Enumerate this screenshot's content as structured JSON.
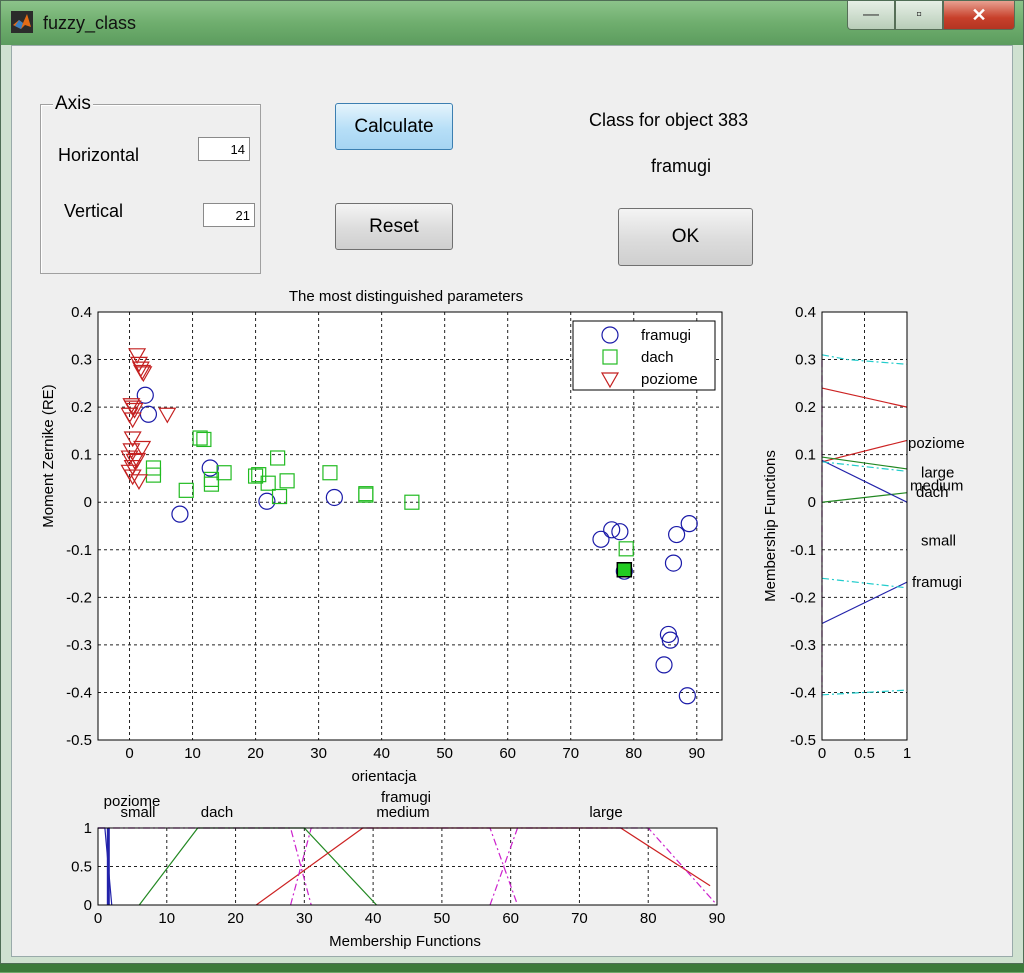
{
  "window": {
    "title": "fuzzy_class",
    "minimize_symbol": "—",
    "restore_symbol": "▫",
    "close_symbol": "✕"
  },
  "axis_panel": {
    "legend": "Axis",
    "horizontal_label": "Horizontal",
    "horizontal_value": "14",
    "vertical_label": "Vertical",
    "vertical_value": "21"
  },
  "buttons": {
    "calculate": "Calculate",
    "reset": "Reset",
    "ok": "OK"
  },
  "result": {
    "class_label": "Class for object  383",
    "class_value": "framugi"
  },
  "colors": {
    "framugi": "#1a1aa8",
    "dach": "#22bb22",
    "poziome": "#c42020",
    "selected": "#22cc22",
    "mf_red": "#cc2222",
    "mf_green": "#228822",
    "mf_magenta": "#cc22cc",
    "mf_cyan": "#22cccc",
    "mf_blue": "#2222aa"
  },
  "chart_data": [
    {
      "type": "scatter",
      "title": "The most distinguished parameters",
      "xlabel": "orientacja",
      "ylabel": "Moment Zernike (RE)",
      "xlim": [
        -5,
        94
      ],
      "ylim": [
        -0.5,
        0.4
      ],
      "xticks": [
        0,
        10,
        20,
        30,
        40,
        50,
        60,
        70,
        80,
        90
      ],
      "yticks": [
        0.4,
        0.3,
        0.2,
        0.1,
        0,
        -0.1,
        -0.2,
        -0.3,
        -0.4,
        -0.5
      ],
      "ytick_labels": [
        "0.4",
        "0.3",
        "0.2",
        "0.1",
        "0",
        "-0.1",
        "-0.2",
        "-0.3",
        "-0.4",
        "-0.5"
      ],
      "grid": true,
      "legend_position": "top-right",
      "series": [
        {
          "name": "framugi",
          "marker": "circle",
          "points": [
            [
              2.5,
              0.225
            ],
            [
              3,
              0.185
            ],
            [
              8,
              -0.025
            ],
            [
              12.8,
              0.072
            ],
            [
              21.8,
              0.002
            ],
            [
              32.5,
              0.01
            ],
            [
              74.8,
              -0.078
            ],
            [
              76.5,
              -0.058
            ],
            [
              77.8,
              -0.062
            ],
            [
              78.5,
              -0.145
            ],
            [
              85.5,
              -0.278
            ],
            [
              85.8,
              -0.29
            ],
            [
              84.8,
              -0.342
            ],
            [
              86.3,
              -0.128
            ],
            [
              86.8,
              -0.068
            ],
            [
              88.8,
              -0.045
            ],
            [
              88.5,
              -0.407
            ]
          ]
        },
        {
          "name": "dach",
          "marker": "square",
          "points": [
            [
              3.8,
              0.072
            ],
            [
              3.8,
              0.057
            ],
            [
              9,
              0.025
            ],
            [
              11.2,
              0.135
            ],
            [
              11.8,
              0.132
            ],
            [
              13,
              0.048
            ],
            [
              13,
              0.038
            ],
            [
              15,
              0.062
            ],
            [
              20,
              0.055
            ],
            [
              20.5,
              0.058
            ],
            [
              22,
              0.04
            ],
            [
              23.5,
              0.093
            ],
            [
              23.8,
              0.012
            ],
            [
              25,
              0.045
            ],
            [
              31.8,
              0.062
            ],
            [
              37.5,
              0.018
            ],
            [
              37.5,
              0.015
            ],
            [
              44.8,
              0.0
            ],
            [
              78.8,
              -0.098
            ]
          ]
        },
        {
          "name": "poziome",
          "marker": "triangle-down",
          "points": [
            [
              1.2,
              0.31
            ],
            [
              1.5,
              0.292
            ],
            [
              1.8,
              0.282
            ],
            [
              2,
              0.275
            ],
            [
              2.2,
              0.272
            ],
            [
              0.3,
              0.205
            ],
            [
              0.5,
              0.2
            ],
            [
              0.8,
              0.195
            ],
            [
              0,
              0.185
            ],
            [
              0.5,
              0.175
            ],
            [
              6,
              0.185
            ],
            [
              0.5,
              0.135
            ],
            [
              0.3,
              0.11
            ],
            [
              0,
              0.095
            ],
            [
              0.8,
              0.088
            ],
            [
              0.5,
              0.075
            ],
            [
              0,
              0.065
            ],
            [
              0.5,
              0.055
            ],
            [
              1.5,
              0.045
            ],
            [
              2,
              0.115
            ],
            [
              1.2,
              0.09
            ]
          ]
        }
      ],
      "selected_point": {
        "series": "dach",
        "x": 78.5,
        "y": -0.142
      }
    },
    {
      "type": "line",
      "xlabel": "Membership Functions",
      "xlim": [
        0,
        90
      ],
      "ylim": [
        0,
        1
      ],
      "xticks": [
        0,
        10,
        20,
        30,
        40,
        50,
        60,
        70,
        80,
        90
      ],
      "yticks": [
        0,
        0.5,
        1
      ],
      "ytick_labels": [
        "0",
        "0.5",
        "1"
      ],
      "grid": true,
      "annotations": [
        {
          "text": "poziome",
          "x": 5
        },
        {
          "text": "small",
          "x": 6
        },
        {
          "text": "dach",
          "x": 17
        },
        {
          "text": "framugi",
          "x": 45
        },
        {
          "text": "medium",
          "x": 45
        },
        {
          "text": "large",
          "x": 74
        }
      ],
      "series": [
        {
          "name": "poziome",
          "color": "blue",
          "style": "solid",
          "points": [
            [
              0,
              1
            ],
            [
              1,
              1
            ],
            [
              2,
              0
            ]
          ]
        },
        {
          "name": "dach",
          "color": "green",
          "style": "solid",
          "points": [
            [
              6,
              0
            ],
            [
              14.5,
              1
            ],
            [
              30,
              1
            ],
            [
              40.5,
              0
            ]
          ]
        },
        {
          "name": "framugi",
          "color": "red",
          "style": "solid",
          "points": [
            [
              23,
              0
            ],
            [
              38.5,
              1
            ],
            [
              76,
              1
            ],
            [
              89,
              0.25
            ]
          ]
        },
        {
          "name": "small",
          "color": "magenta",
          "style": "dashdot",
          "points": [
            [
              0,
              1
            ],
            [
              28,
              1
            ],
            [
              31,
              0
            ]
          ]
        },
        {
          "name": "medium",
          "color": "magenta",
          "style": "dashdot",
          "points": [
            [
              28,
              0
            ],
            [
              31,
              1
            ],
            [
              57,
              1
            ],
            [
              61,
              0
            ]
          ]
        },
        {
          "name": "large",
          "color": "magenta",
          "style": "dashdot",
          "points": [
            [
              57,
              0
            ],
            [
              61,
              1
            ],
            [
              80,
              1
            ],
            [
              90,
              0
            ]
          ]
        }
      ]
    },
    {
      "type": "line",
      "ylabel": "Membership Functions",
      "xlim": [
        0,
        1
      ],
      "ylim": [
        -0.5,
        0.4
      ],
      "xticks": [
        0,
        0.5,
        1
      ],
      "xtick_labels": [
        "0",
        "0.5",
        "1"
      ],
      "yticks": [
        0.4,
        0.3,
        0.2,
        0.1,
        0,
        -0.1,
        -0.2,
        -0.3,
        -0.4,
        -0.5
      ],
      "ytick_labels": [
        "0.4",
        "0.3",
        "0.2",
        "0.1",
        "0",
        "-0.1",
        "-0.2",
        "-0.3",
        "-0.4",
        "-0.5"
      ],
      "grid": true,
      "annotations": [
        {
          "text": "poziome",
          "y": 0.125
        },
        {
          "text": "large",
          "y": 0.063
        },
        {
          "text": "medium",
          "y": 0.035
        },
        {
          "text": "dach",
          "y": 0.022
        },
        {
          "text": "small",
          "y": -0.08
        },
        {
          "text": "framugi",
          "y": -0.168
        }
      ],
      "series": [
        {
          "name": "poziome-upper",
          "color": "red",
          "style": "solid",
          "points": [
            [
              0,
              0.24
            ],
            [
              1,
              0.2
            ]
          ]
        },
        {
          "name": "poziome-lower",
          "color": "red",
          "style": "solid",
          "points": [
            [
              0,
              0.085
            ],
            [
              1,
              0.13
            ]
          ]
        },
        {
          "name": "dach-upper",
          "color": "green",
          "style": "solid",
          "points": [
            [
              0,
              0.095
            ],
            [
              1,
              0.07
            ]
          ]
        },
        {
          "name": "dach-lower",
          "color": "green",
          "style": "solid",
          "points": [
            [
              0,
              0.0
            ],
            [
              1,
              0.02
            ]
          ]
        },
        {
          "name": "framugi-upper",
          "color": "blue",
          "style": "solid",
          "points": [
            [
              0,
              0.088
            ],
            [
              1,
              0.0
            ]
          ]
        },
        {
          "name": "framugi-lower",
          "color": "blue",
          "style": "solid",
          "points": [
            [
              0,
              -0.255
            ],
            [
              1,
              -0.168
            ]
          ]
        },
        {
          "name": "large",
          "color": "cyan",
          "style": "dashdot",
          "points": [
            [
              0,
              0.31
            ],
            [
              0.3,
              0.3
            ],
            [
              1,
              0.29
            ]
          ]
        },
        {
          "name": "medium",
          "color": "cyan",
          "style": "dashdot",
          "points": [
            [
              0,
              0.085
            ],
            [
              1,
              0.065
            ]
          ]
        },
        {
          "name": "small",
          "color": "cyan",
          "style": "dashdot",
          "points": [
            [
              0,
              -0.16
            ],
            [
              1,
              -0.18
            ]
          ]
        },
        {
          "name": "small-low",
          "color": "cyan",
          "style": "dashdot",
          "points": [
            [
              0,
              -0.405
            ],
            [
              1,
              -0.395
            ]
          ]
        },
        {
          "name": "edge",
          "color": "magenta",
          "style": "dashdot",
          "points": [
            [
              0,
              -0.41
            ],
            [
              0,
              0.3
            ]
          ]
        }
      ]
    }
  ]
}
